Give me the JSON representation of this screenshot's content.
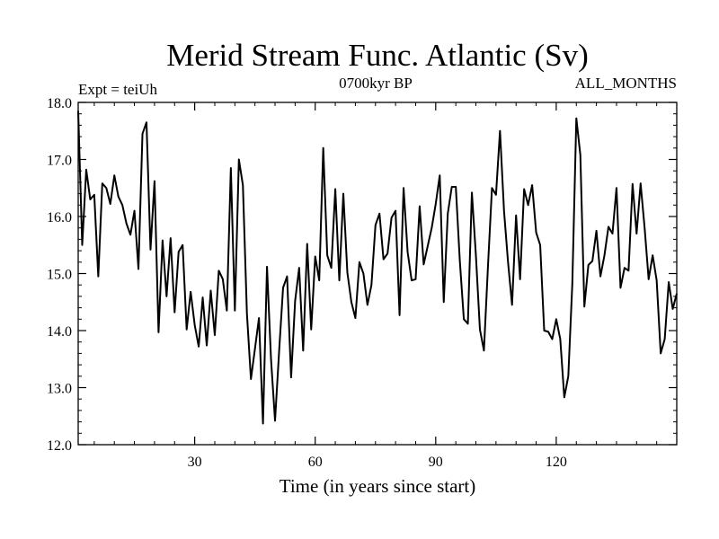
{
  "chart_data": {
    "type": "line",
    "title": "Merid Stream Func. Atlantic (Sv)",
    "subtitle_left": "Expt = teiUh",
    "subtitle_center": "0700kyr BP",
    "subtitle_right": "ALL_MONTHS",
    "xlabel": "Time (in years since start)",
    "ylabel": "",
    "xlim": [
      1,
      150
    ],
    "ylim": [
      12.0,
      18.0
    ],
    "xticks": [
      30,
      60,
      90,
      120
    ],
    "yticks": [
      12.0,
      13.0,
      14.0,
      15.0,
      16.0,
      17.0,
      18.0
    ],
    "grid": false,
    "series": [
      {
        "x": [
          1,
          2,
          3,
          4,
          5,
          6,
          7,
          8,
          9,
          10,
          11,
          12,
          13,
          14,
          15,
          16,
          17,
          18,
          19,
          20,
          21,
          22,
          23,
          24,
          25,
          26,
          27,
          28,
          29,
          30,
          31,
          32,
          33,
          34,
          35,
          36,
          37,
          38,
          39,
          40,
          41,
          42,
          43,
          44,
          45,
          46,
          47,
          48,
          49,
          50,
          51,
          52,
          53,
          54,
          55,
          56,
          57,
          58,
          59,
          60,
          61,
          62,
          63,
          64,
          65,
          66,
          67,
          68,
          69,
          70,
          71,
          72,
          73,
          74,
          75,
          76,
          77,
          78,
          79,
          80,
          81,
          82,
          83,
          84,
          85,
          86,
          87,
          88,
          89,
          90,
          91,
          92,
          93,
          94,
          95,
          96,
          97,
          98,
          99,
          100,
          101,
          102,
          103,
          104,
          105,
          106,
          107,
          108,
          109,
          110,
          111,
          112,
          113,
          114,
          115,
          116,
          117,
          118,
          119,
          120,
          121,
          122,
          123,
          124,
          125,
          126,
          127,
          128,
          129,
          130,
          131,
          132,
          133,
          134,
          135,
          136,
          137,
          138,
          139,
          140,
          141,
          142,
          143,
          144,
          145,
          146,
          147,
          148,
          149,
          150
        ],
        "values": [
          17.85,
          15.5,
          16.82,
          16.3,
          16.38,
          14.95,
          16.58,
          16.5,
          16.22,
          16.72,
          16.35,
          16.2,
          15.88,
          15.68,
          16.1,
          15.08,
          17.45,
          17.65,
          15.42,
          16.62,
          13.97,
          15.58,
          14.6,
          15.62,
          14.32,
          15.38,
          15.5,
          14.02,
          14.68,
          14.1,
          13.72,
          14.58,
          13.74,
          14.7,
          13.92,
          15.05,
          14.9,
          14.35,
          16.85,
          14.35,
          17.0,
          16.55,
          14.3,
          13.15,
          13.68,
          14.22,
          12.37,
          15.12,
          13.5,
          12.42,
          13.62,
          14.75,
          14.95,
          13.18,
          14.52,
          15.1,
          13.65,
          15.52,
          14.02,
          15.3,
          14.88,
          17.2,
          15.32,
          15.1,
          16.48,
          14.88,
          16.4,
          15.02,
          14.5,
          14.22,
          15.2,
          15.0,
          14.45,
          14.8,
          15.85,
          16.05,
          15.25,
          15.35,
          15.98,
          16.1,
          14.27,
          16.5,
          15.38,
          14.88,
          14.9,
          16.18,
          15.16,
          15.48,
          15.8,
          16.22,
          16.72,
          14.5,
          16.05,
          16.52,
          16.52,
          15.22,
          14.2,
          14.12,
          16.42,
          15.32,
          14.02,
          13.65,
          15.12,
          16.5,
          16.38,
          17.5,
          16.1,
          15.2,
          14.45,
          16.02,
          14.9,
          16.48,
          16.2,
          16.55,
          15.72,
          15.5,
          14.0,
          13.98,
          13.85,
          14.2,
          13.85,
          12.83,
          13.2,
          14.82,
          17.72,
          17.08,
          14.42,
          15.15,
          15.22,
          15.75,
          14.95,
          15.32,
          15.82,
          15.7,
          16.5,
          14.75,
          15.1,
          15.05,
          16.57,
          15.7,
          16.58,
          15.8,
          14.9,
          15.32,
          14.88,
          13.6,
          13.85,
          14.85,
          14.38,
          14.65
        ]
      }
    ]
  }
}
